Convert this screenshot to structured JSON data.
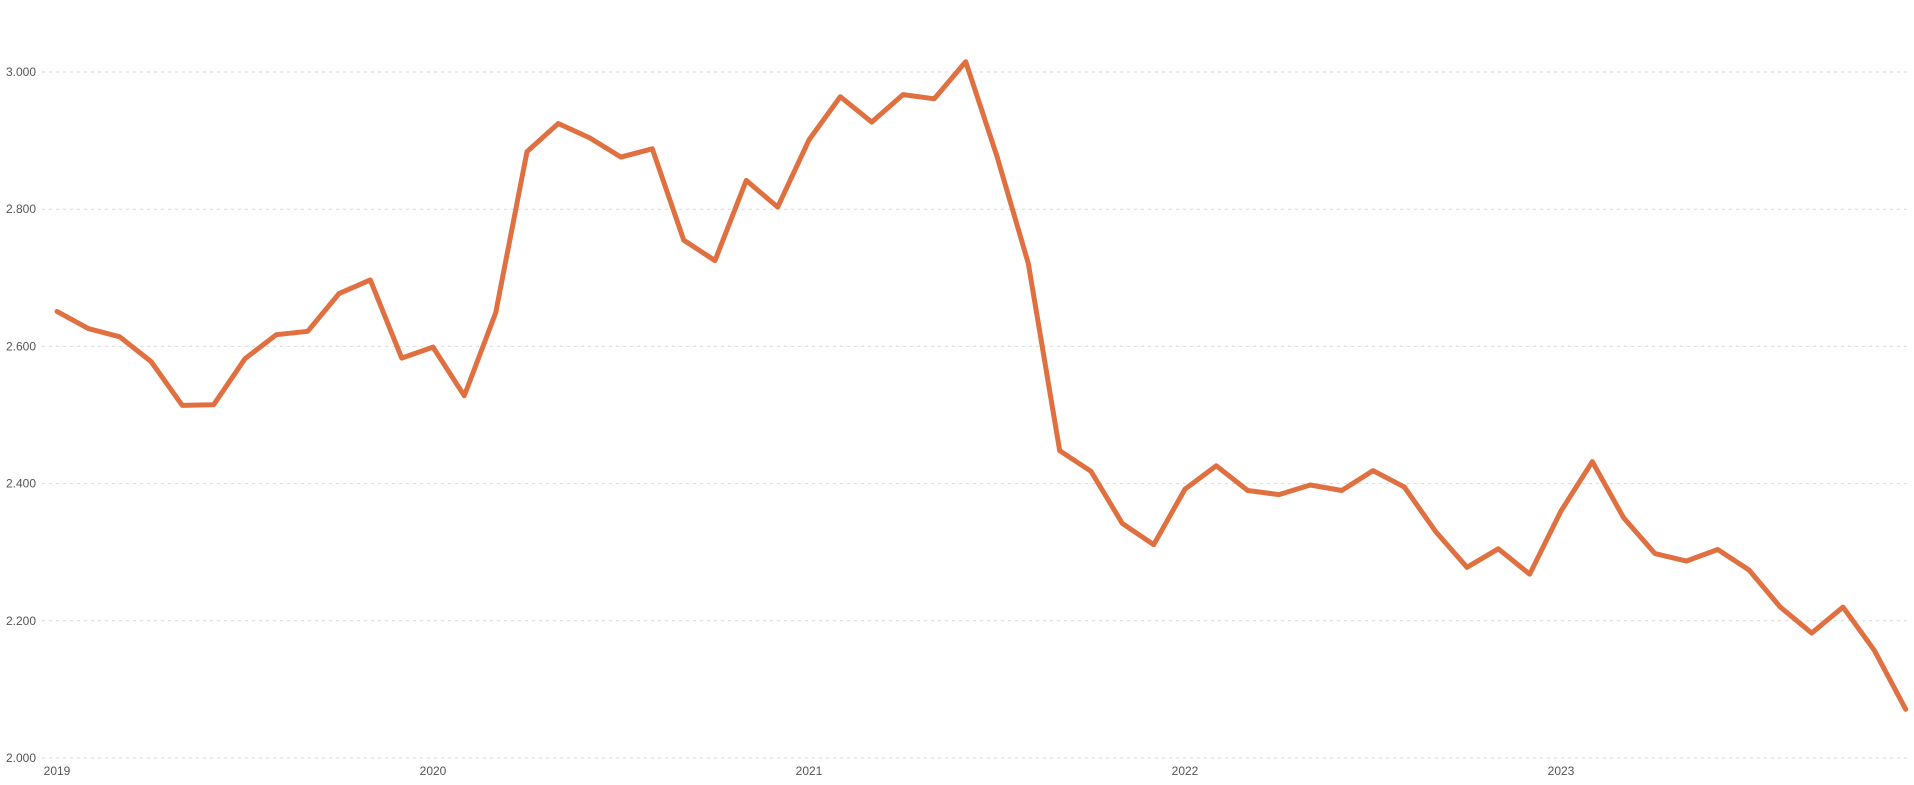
{
  "chart_data": {
    "type": "line",
    "title": "",
    "xlabel": "",
    "ylabel": "",
    "x_tick_labels": [
      "2019",
      "2020",
      "2021",
      "2022",
      "2023"
    ],
    "y_tick_labels": [
      "2.000",
      "2.200",
      "2.400",
      "2.600",
      "2.800",
      "3.000"
    ],
    "y_ticks": [
      2000,
      2200,
      2400,
      2600,
      2800,
      3000
    ],
    "ylim": [
      2000,
      3100
    ],
    "x_start_year": 2019,
    "x_end_year": 2024,
    "x_unit": "month",
    "grid": {
      "horizontal": true,
      "vertical": false
    },
    "legend": "none",
    "colors": {
      "line": "#e07040",
      "grid": "#d9d9d9",
      "tick_text": "#555555"
    },
    "series": [
      {
        "x": [
          "2019-01",
          "2019-02",
          "2019-03",
          "2019-04",
          "2019-05",
          "2019-06",
          "2019-07",
          "2019-08",
          "2019-09",
          "2019-10",
          "2019-11",
          "2019-12",
          "2020-01",
          "2020-02",
          "2020-03",
          "2020-04",
          "2020-05",
          "2020-06",
          "2020-07",
          "2020-08",
          "2020-09",
          "2020-10",
          "2020-11",
          "2020-12",
          "2021-01",
          "2021-02",
          "2021-03",
          "2021-04",
          "2021-05",
          "2021-06",
          "2021-07",
          "2021-08",
          "2021-09",
          "2021-10",
          "2021-11",
          "2021-12",
          "2022-01",
          "2022-02",
          "2022-03",
          "2022-04",
          "2022-05",
          "2022-06",
          "2022-07",
          "2022-08",
          "2022-09",
          "2022-10",
          "2022-11",
          "2022-12",
          "2023-01",
          "2023-02",
          "2023-03",
          "2023-04",
          "2023-05",
          "2023-06",
          "2023-07",
          "2023-08",
          "2023-09",
          "2023-10",
          "2023-11",
          "2023-12"
        ],
        "values": [
          2651,
          2626,
          2614,
          2578,
          2514,
          2515,
          2582,
          2617,
          2622,
          2677,
          2697,
          2583,
          2599,
          2528,
          2649,
          2884,
          2925,
          2904,
          2876,
          2888,
          2755,
          2725,
          2842,
          2803,
          2901,
          2964,
          2927,
          2967,
          2961,
          3015,
          2877,
          2721,
          2448,
          2418,
          2342,
          2311,
          2392,
          2426,
          2390,
          2384,
          2398,
          2390,
          2419,
          2395,
          2330,
          2278,
          2305,
          2268,
          2360,
          2432,
          2350,
          2298,
          2287,
          2304,
          2274,
          2220,
          2182,
          2220,
          2157,
          2071
        ]
      }
    ]
  }
}
